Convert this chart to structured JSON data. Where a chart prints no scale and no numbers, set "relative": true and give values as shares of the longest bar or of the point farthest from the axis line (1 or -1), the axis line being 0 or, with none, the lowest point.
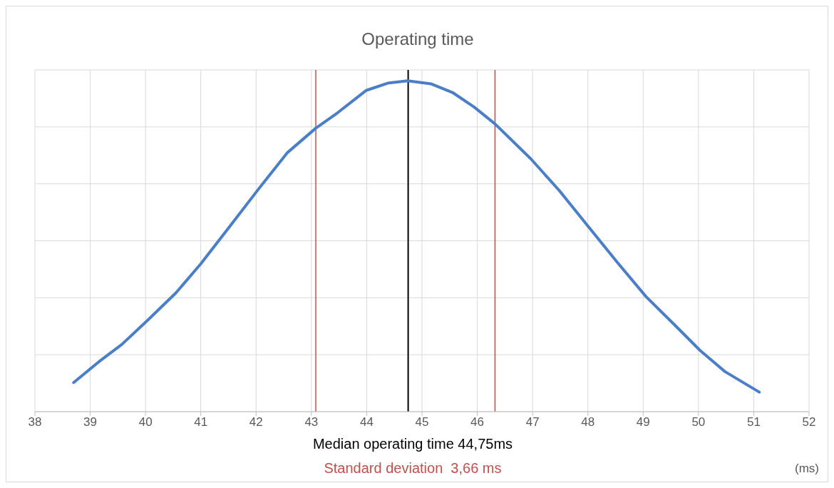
{
  "chart_data": {
    "type": "line",
    "title": "Operating time",
    "xlabel": "(ms)",
    "relative": true,
    "x": [
      38.7,
      39.18,
      39.57,
      40.03,
      40.55,
      41.0,
      41.52,
      42.04,
      42.56,
      43.08,
      43.47,
      43.99,
      44.38,
      44.74,
      45.16,
      45.55,
      45.94,
      46.32,
      46.97,
      47.49,
      48.01,
      48.53,
      49.05,
      49.57,
      50.03,
      50.48,
      51.1
    ],
    "series": [
      {
        "color": "#4a7fc8",
        "values": [
          0.088,
          0.154,
          0.203,
          0.275,
          0.359,
          0.447,
          0.559,
          0.672,
          0.782,
          0.857,
          0.903,
          0.971,
          0.993,
          1,
          0.991,
          0.965,
          0.921,
          0.87,
          0.764,
          0.667,
          0.559,
          0.452,
          0.348,
          0.262,
          0.185,
          0.121,
          0.059
        ]
      }
    ],
    "xlim": [
      38,
      52
    ],
    "xticks": [
      38,
      39,
      40,
      41,
      42,
      43,
      44,
      45,
      46,
      47,
      48,
      49,
      50,
      51,
      52
    ],
    "grid": true,
    "marker": "none",
    "line_style": "solid",
    "ref_lines": [
      {
        "axis": "x",
        "value": 44.75,
        "color": "#000000"
      },
      {
        "axis": "x",
        "value": 43.08,
        "color": "#c0504d"
      },
      {
        "axis": "x",
        "value": 46.32,
        "color": "#c0504d"
      }
    ],
    "annotations": [
      "Median operating time 44,75ms",
      "Standard deviation  3,66 ms"
    ]
  }
}
